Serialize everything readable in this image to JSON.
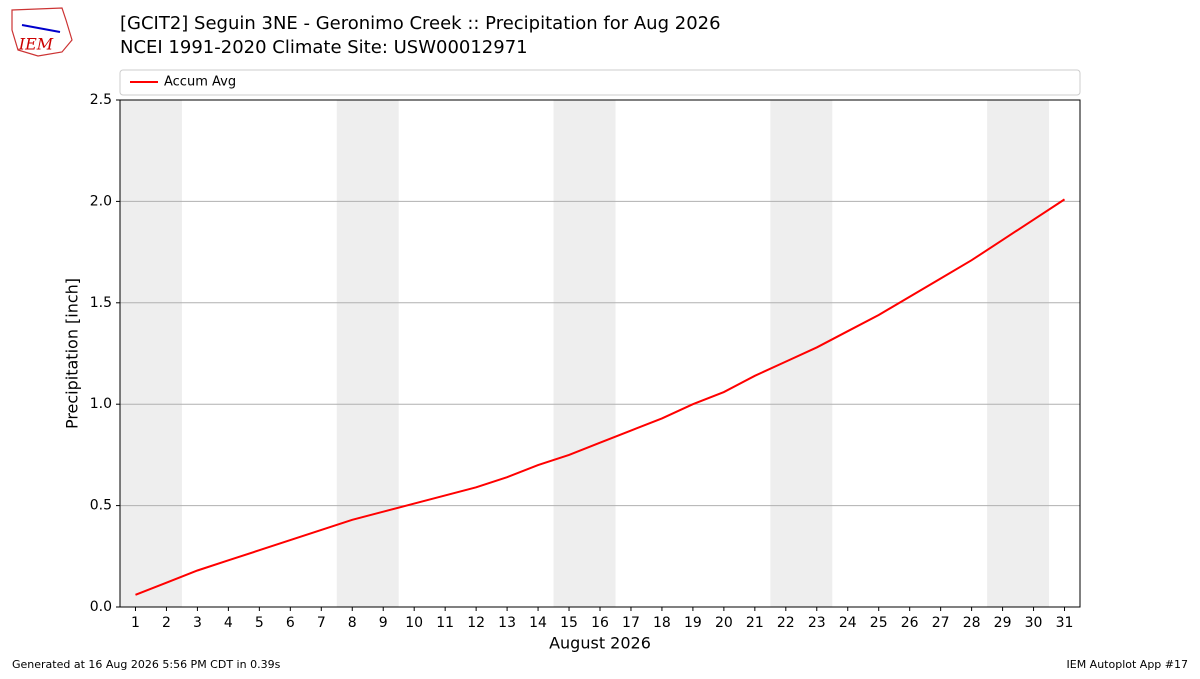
{
  "logo_text": "IEM",
  "footer_left": "Generated at 16 Aug 2026 5:56 PM CDT in 0.39s",
  "footer_right": "IEM Autoplot App #17",
  "chart_data": {
    "type": "line",
    "title": "[GCIT2] Seguin 3NE - Geronimo Creek :: Precipitation for Aug 2026",
    "subtitle": "NCEI 1991-2020 Climate Site: USW00012971",
    "xlabel": "August 2026",
    "ylabel": "Precipitation [inch]",
    "x": [
      1,
      2,
      3,
      4,
      5,
      6,
      7,
      8,
      9,
      10,
      11,
      12,
      13,
      14,
      15,
      16,
      17,
      18,
      19,
      20,
      21,
      22,
      23,
      24,
      25,
      26,
      27,
      28,
      29,
      30,
      31
    ],
    "series": [
      {
        "name": "Accum Avg",
        "color": "#ff0000",
        "values": [
          0.06,
          0.12,
          0.18,
          0.23,
          0.28,
          0.33,
          0.38,
          0.43,
          0.47,
          0.51,
          0.55,
          0.59,
          0.64,
          0.7,
          0.75,
          0.81,
          0.87,
          0.93,
          1.0,
          1.06,
          1.14,
          1.21,
          1.28,
          1.36,
          1.44,
          1.53,
          1.62,
          1.71,
          1.81,
          1.91,
          2.01
        ]
      }
    ],
    "xlim": [
      0.5,
      31.5
    ],
    "ylim": [
      0,
      2.5
    ],
    "xticks": [
      1,
      2,
      3,
      4,
      5,
      6,
      7,
      8,
      9,
      10,
      11,
      12,
      13,
      14,
      15,
      16,
      17,
      18,
      19,
      20,
      21,
      22,
      23,
      24,
      25,
      26,
      27,
      28,
      29,
      30,
      31
    ],
    "yticks": [
      {
        "value": 0,
        "label": "0.0"
      },
      0.5,
      {
        "value": 1,
        "label": "1.0"
      },
      1.5,
      {
        "value": 2,
        "label": "2.0"
      },
      2.5
    ],
    "shaded_spans": [
      [
        0.5,
        2.5
      ],
      [
        7.5,
        9.5
      ],
      [
        14.5,
        16.5
      ],
      [
        21.5,
        23.5
      ],
      [
        28.5,
        30.5
      ]
    ],
    "shade_color": "#eeeeee",
    "grid": "y",
    "legend": "top"
  }
}
